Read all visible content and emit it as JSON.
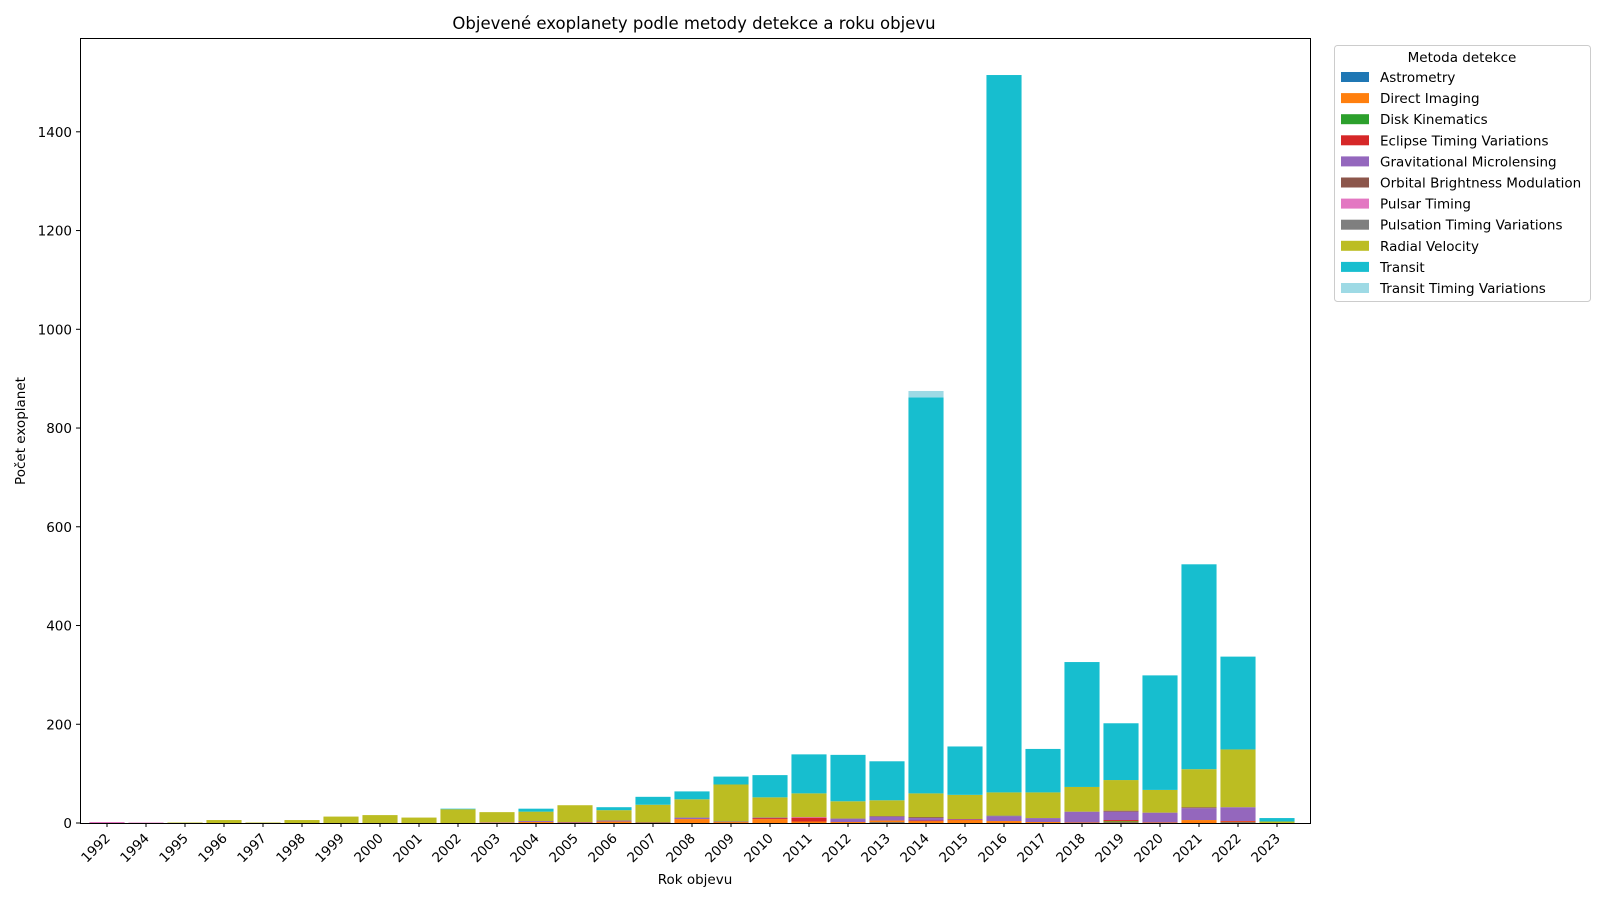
{
  "chart_data": {
    "type": "bar",
    "stacked": true,
    "title": "Objevené exoplanety podle metody detekce a roku objevu",
    "xlabel": "Rok objevu",
    "ylabel": "Počet exoplanet",
    "ylim": [
      0,
      1590
    ],
    "yticks": [
      0,
      200,
      400,
      600,
      800,
      1000,
      1200,
      1400
    ],
    "grid": false,
    "legend": {
      "title": "Metoda detekce",
      "placement": "outside-top-right"
    },
    "categories": [
      "1992",
      "1994",
      "1995",
      "1996",
      "1997",
      "1998",
      "1999",
      "2000",
      "2001",
      "2002",
      "2003",
      "2004",
      "2005",
      "2006",
      "2007",
      "2008",
      "2009",
      "2010",
      "2011",
      "2012",
      "2013",
      "2014",
      "2015",
      "2016",
      "2017",
      "2018",
      "2019",
      "2020",
      "2021",
      "2022",
      "2023"
    ],
    "series": [
      {
        "name": "Astrometry",
        "color": "#1f77b4",
        "values": [
          0,
          0,
          0,
          0,
          0,
          0,
          0,
          0,
          0,
          0,
          0,
          0,
          0,
          0,
          0,
          0,
          0,
          0,
          0,
          0,
          1,
          0,
          0,
          0,
          0,
          0,
          1,
          0,
          0,
          1,
          0
        ]
      },
      {
        "name": "Direct Imaging",
        "color": "#ff7f0e",
        "values": [
          0,
          0,
          0,
          0,
          0,
          0,
          0,
          0,
          0,
          0,
          0,
          2,
          1,
          3,
          1,
          8,
          2,
          8,
          3,
          2,
          4,
          4,
          6,
          4,
          2,
          1,
          2,
          1,
          6,
          2,
          0
        ]
      },
      {
        "name": "Disk Kinematics",
        "color": "#2ca02c",
        "values": [
          0,
          0,
          0,
          0,
          0,
          0,
          0,
          0,
          0,
          0,
          0,
          0,
          0,
          0,
          0,
          0,
          0,
          0,
          0,
          0,
          0,
          0,
          0,
          0,
          0,
          0,
          1,
          0,
          0,
          0,
          0
        ]
      },
      {
        "name": "Eclipse Timing Variations",
        "color": "#d62728",
        "values": [
          0,
          0,
          0,
          0,
          0,
          0,
          0,
          0,
          0,
          0,
          0,
          0,
          0,
          0,
          0,
          0,
          0,
          2,
          8,
          0,
          0,
          1,
          1,
          0,
          0,
          0,
          2,
          0,
          0,
          1,
          0
        ]
      },
      {
        "name": "Gravitational Microlensing",
        "color": "#9467bd",
        "values": [
          0,
          0,
          0,
          0,
          0,
          0,
          0,
          0,
          0,
          0,
          0,
          2,
          1,
          2,
          0,
          3,
          1,
          1,
          0,
          7,
          8,
          5,
          1,
          10,
          8,
          22,
          17,
          20,
          24,
          28,
          0
        ]
      },
      {
        "name": "Orbital Brightness Modulation",
        "color": "#8c564b",
        "values": [
          0,
          0,
          0,
          0,
          0,
          0,
          0,
          0,
          0,
          0,
          0,
          0,
          0,
          0,
          0,
          0,
          0,
          0,
          0,
          0,
          1,
          2,
          0,
          0,
          0,
          0,
          2,
          0,
          2,
          0,
          0
        ]
      },
      {
        "name": "Pulsar Timing",
        "color": "#e377c2",
        "values": [
          2,
          1,
          0,
          0,
          0,
          0,
          0,
          0,
          0,
          0,
          1,
          0,
          0,
          0,
          0,
          0,
          0,
          0,
          1,
          0,
          0,
          0,
          0,
          0,
          0,
          0,
          0,
          0,
          0,
          0,
          0
        ]
      },
      {
        "name": "Pulsation Timing Variations",
        "color": "#7f7f7f",
        "values": [
          0,
          0,
          0,
          0,
          0,
          0,
          0,
          0,
          0,
          0,
          0,
          0,
          0,
          0,
          1,
          0,
          0,
          0,
          0,
          0,
          0,
          0,
          0,
          1,
          0,
          0,
          0,
          0,
          0,
          0,
          0
        ]
      },
      {
        "name": "Radial Velocity",
        "color": "#bcbd22",
        "values": [
          0,
          0,
          1,
          6,
          1,
          6,
          13,
          16,
          11,
          28,
          21,
          19,
          34,
          21,
          35,
          37,
          75,
          41,
          48,
          35,
          32,
          48,
          49,
          47,
          52,
          50,
          62,
          46,
          77,
          117,
          3
        ]
      },
      {
        "name": "Transit",
        "color": "#17becf",
        "values": [
          0,
          0,
          0,
          0,
          0,
          0,
          0,
          0,
          0,
          1,
          0,
          6,
          0,
          6,
          16,
          16,
          16,
          45,
          79,
          94,
          79,
          802,
          98,
          1453,
          88,
          253,
          115,
          232,
          415,
          188,
          7
        ]
      },
      {
        "name": "Transit Timing Variations",
        "color": "#9edae5",
        "values": [
          0,
          0,
          0,
          0,
          0,
          0,
          0,
          0,
          0,
          0,
          0,
          0,
          0,
          0,
          0,
          0,
          0,
          0,
          0,
          0,
          0,
          13,
          0,
          0,
          0,
          0,
          0,
          0,
          0,
          0,
          0
        ]
      }
    ]
  }
}
